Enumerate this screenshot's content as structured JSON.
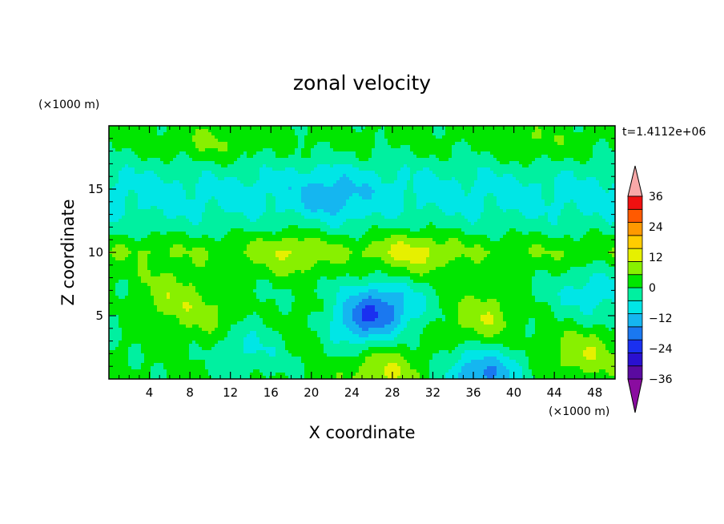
{
  "chart_data": {
    "type": "heatmap",
    "title": "zonal velocity",
    "xlabel": "X coordinate",
    "ylabel": "Z coordinate",
    "x_unit": "(×1000 m)",
    "y_unit": "(×1000 m)",
    "time_label": "t=1.4112e+06",
    "xlim": [
      0,
      50
    ],
    "ylim": [
      0,
      20
    ],
    "x_ticks": [
      4,
      8,
      12,
      16,
      20,
      24,
      28,
      32,
      36,
      40,
      44,
      48
    ],
    "y_ticks": [
      5,
      10,
      15
    ],
    "colorbar": {
      "levels": [
        -42,
        -36,
        -30,
        -24,
        -18,
        -12,
        -6,
        0,
        6,
        12,
        18,
        24,
        30,
        36,
        42
      ],
      "tick_labels": [
        "36",
        "24",
        "12",
        "0",
        "−12",
        "−24",
        "−36"
      ],
      "tick_values": [
        36,
        24,
        12,
        0,
        -12,
        -24,
        -36
      ],
      "colors": [
        "#8a0ca0",
        "#5a0aa0",
        "#2a10d0",
        "#1a30f0",
        "#1a78f0",
        "#15b6f0",
        "#00e6e6",
        "#00f0a0",
        "#00e600",
        "#88f000",
        "#e6f000",
        "#ffcc00",
        "#ff9900",
        "#ff5a00",
        "#f01010",
        "#f8a8a8"
      ],
      "extend": "both"
    },
    "features": [
      {
        "x": 6,
        "z": 6.5,
        "u": 10
      },
      {
        "x": 10,
        "z": 5,
        "u": 7
      },
      {
        "x": 20,
        "z": 4.5,
        "u": 6
      },
      {
        "x": 24.5,
        "z": 4.2,
        "u": -15
      },
      {
        "x": 27,
        "z": 5.8,
        "u": -16
      },
      {
        "x": 27,
        "z": 0.5,
        "u": 12
      },
      {
        "x": 37,
        "z": 5,
        "u": 12
      },
      {
        "x": 37,
        "z": 0.4,
        "u": -20
      },
      {
        "x": 47,
        "z": 2,
        "u": 10
      },
      {
        "x": 14,
        "z": 2.5,
        "u": -8
      },
      {
        "x": 48,
        "z": 7,
        "u": -9
      },
      {
        "x": 18,
        "z": 10,
        "u": 7
      },
      {
        "x": 30,
        "z": 10,
        "u": 9
      },
      {
        "x": 22,
        "z": 14.5,
        "u": -8
      },
      {
        "x": 10,
        "z": 18.5,
        "u": 5
      },
      {
        "x": 42,
        "z": 18.5,
        "u": 4
      }
    ]
  }
}
